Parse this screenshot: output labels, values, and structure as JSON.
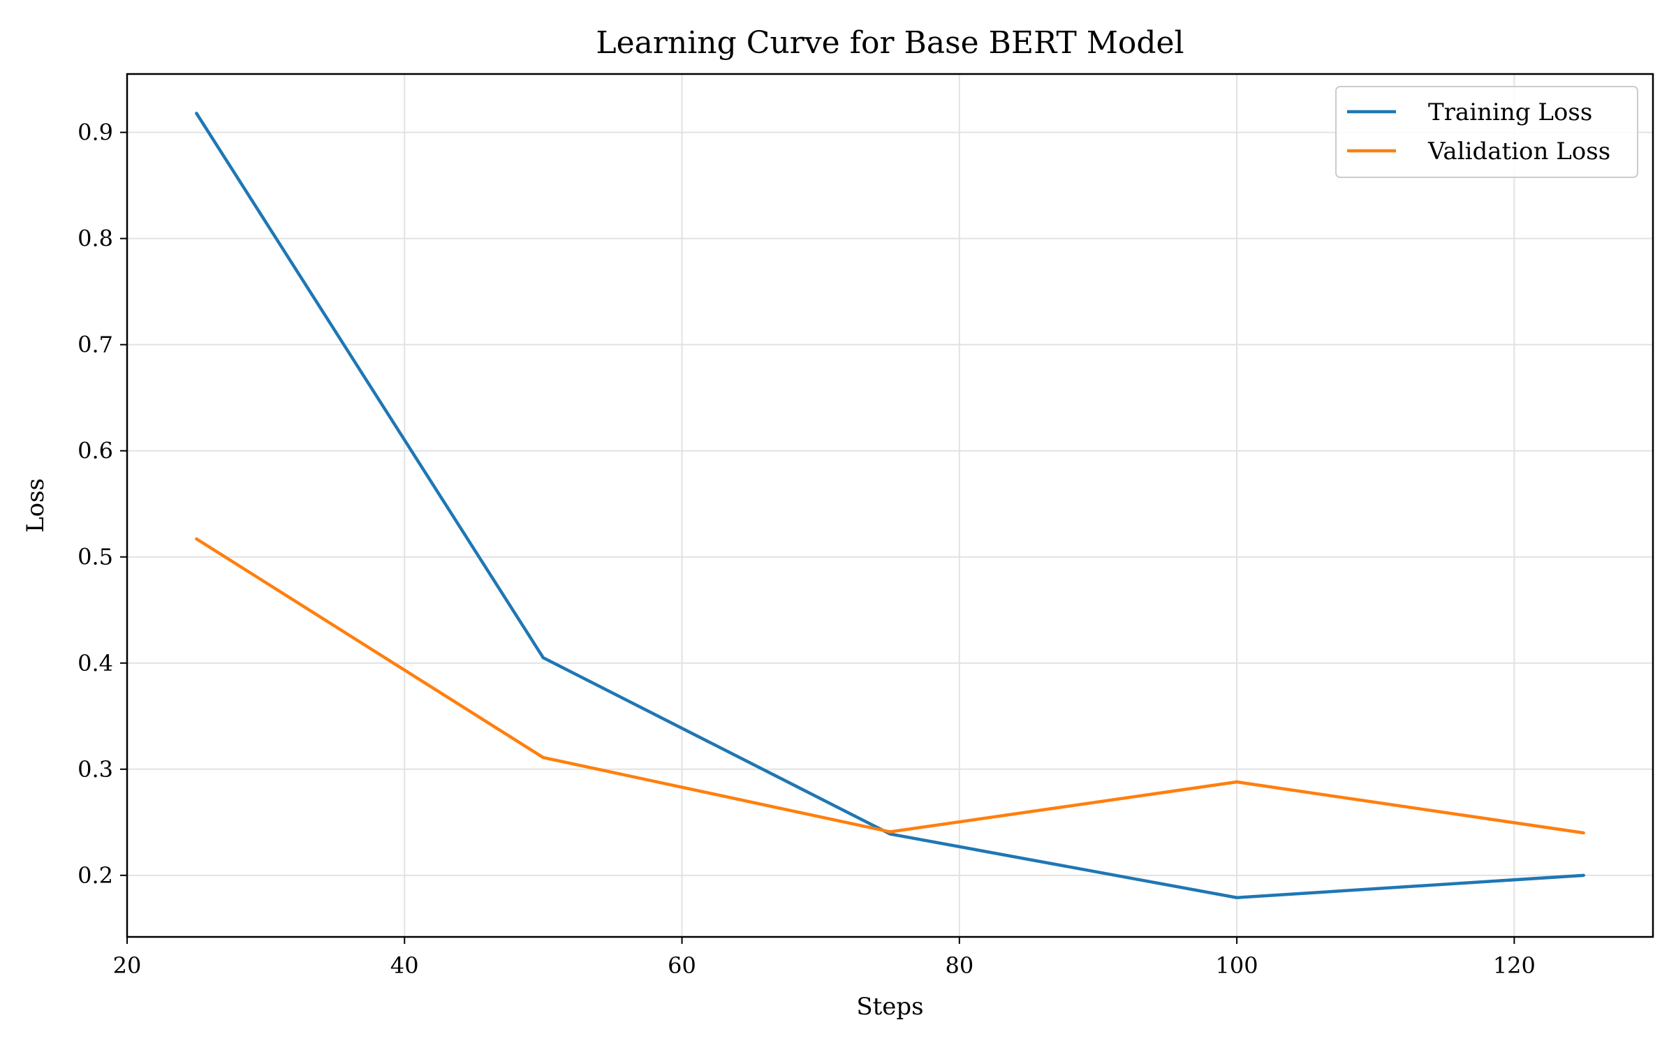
{
  "chart_data": {
    "type": "line",
    "title": "Learning Curve for Base BERT Model",
    "xlabel": "Steps",
    "ylabel": "Loss",
    "xlim": [
      20,
      130
    ],
    "ylim": [
      0.142,
      0.955
    ],
    "xticks": [
      20,
      40,
      60,
      80,
      100,
      120
    ],
    "xtick_labels": [
      "20",
      "40",
      "60",
      "80",
      "100",
      "120"
    ],
    "yticks": [
      0.2,
      0.3,
      0.4,
      0.5,
      0.6,
      0.7,
      0.8,
      0.9
    ],
    "ytick_labels": [
      "0.2",
      "0.3",
      "0.4",
      "0.5",
      "0.6",
      "0.7",
      "0.8",
      "0.9"
    ],
    "grid": true,
    "legend_position": "top-right",
    "x": [
      25,
      50,
      75,
      100,
      125
    ],
    "series": [
      {
        "name": "Training Loss",
        "color": "#1f77b4",
        "values": [
          0.918,
          0.405,
          0.239,
          0.179,
          0.2
        ]
      },
      {
        "name": "Validation Loss",
        "color": "#ff7f0e",
        "values": [
          0.517,
          0.311,
          0.241,
          0.288,
          0.24
        ]
      }
    ]
  }
}
